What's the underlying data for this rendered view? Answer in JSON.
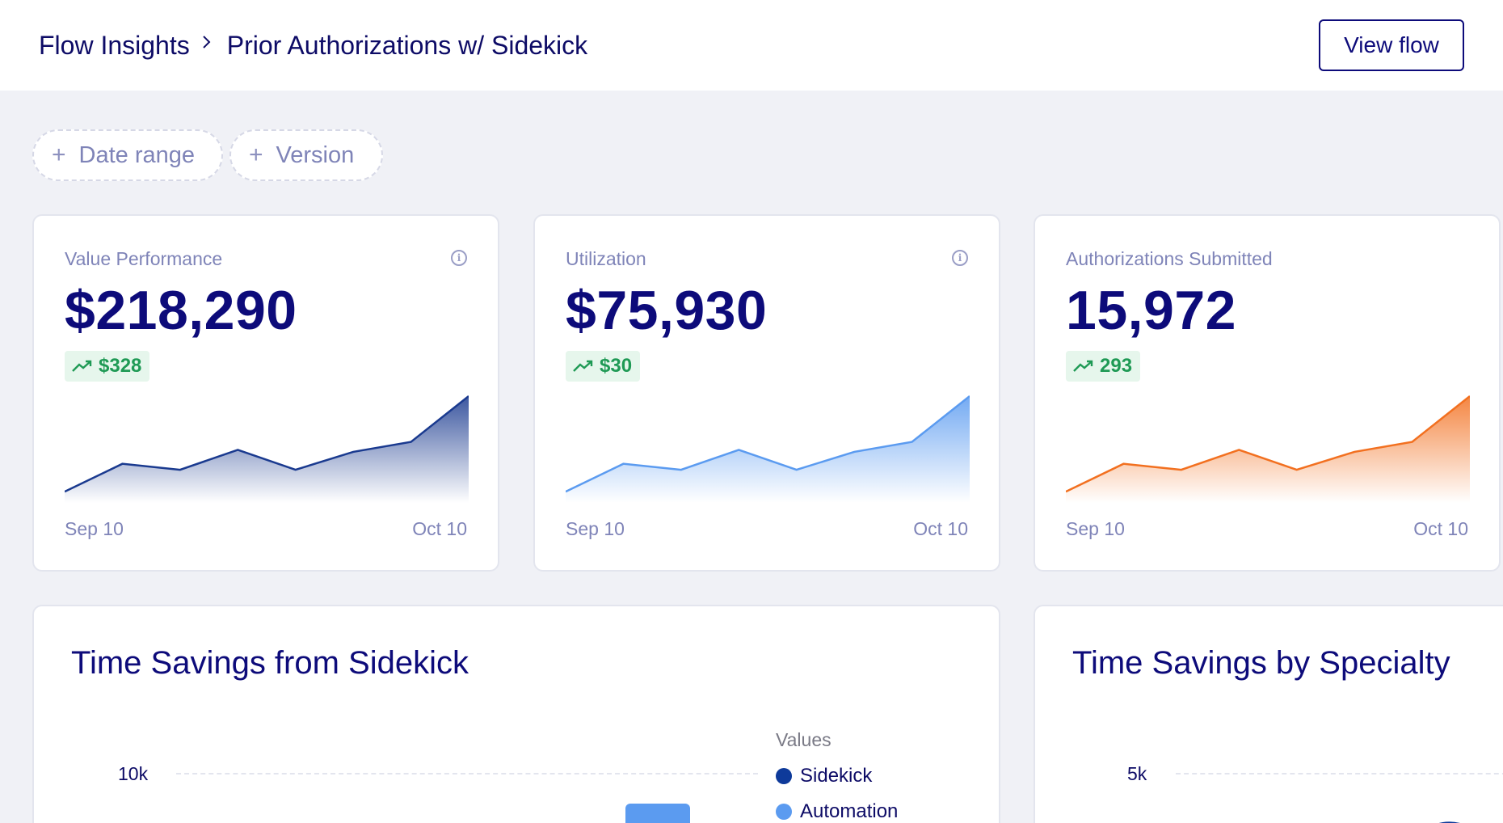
{
  "header": {
    "breadcrumb": [
      "Flow Insights",
      "Prior Authorizations w/ Sidekick"
    ],
    "breadcrumb_separator": ">",
    "view_flow_label": "View flow"
  },
  "filters": [
    {
      "label": "Date range",
      "icon": "plus-icon"
    },
    {
      "label": "Version",
      "icon": "plus-icon"
    }
  ],
  "cards": [
    {
      "label": "Value Performance",
      "value": "$218,290",
      "delta": "$328",
      "start_date": "Sep 10",
      "end_date": "Oct 10",
      "color": "#1a3a8f",
      "trend": [
        4,
        18,
        15,
        25,
        15,
        24,
        29,
        52
      ]
    },
    {
      "label": "Utilization",
      "value": "$75,930",
      "delta": "$30",
      "start_date": "Sep 10",
      "end_date": "Oct 10",
      "color": "#5b9bf0",
      "trend": [
        4,
        18,
        15,
        25,
        15,
        24,
        29,
        52
      ]
    },
    {
      "label": "Authorizations Submitted",
      "value": "15,972",
      "delta": "293",
      "start_date": "Sep 10",
      "end_date": "Oct 10",
      "color": "#f27020",
      "trend": [
        4,
        18,
        15,
        25,
        15,
        24,
        29,
        52
      ]
    }
  ],
  "panels": [
    {
      "title": "Time Savings from Sidekick",
      "ytick": "10k",
      "legend_title": "Values",
      "legend": [
        {
          "name": "Sidekick",
          "color": "#0e3a9a"
        },
        {
          "name": "Automation",
          "color": "#5b9bf0"
        }
      ]
    },
    {
      "title": "Time Savings by Specialty",
      "ytick": "5k"
    }
  ]
}
